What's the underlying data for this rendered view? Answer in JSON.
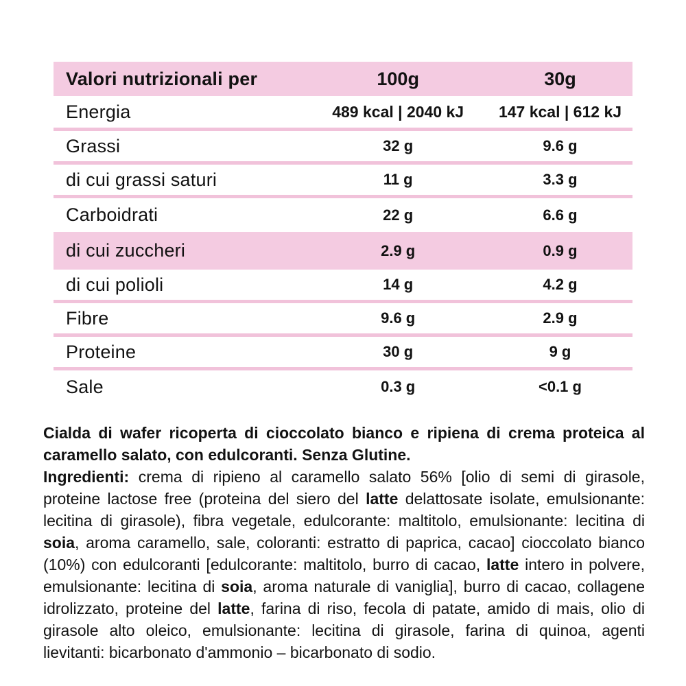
{
  "colors": {
    "pink_bg": "#f4cbe1",
    "pink_line": "#f1c2da",
    "ink": "#121212",
    "page_bg": "#ffffff"
  },
  "table": {
    "header": {
      "title": "Valori nutrizionali per",
      "col_100g": "100g",
      "col_30g": "30g"
    },
    "rows": [
      {
        "label": "Energia",
        "per_100g": "489 kcal | 2040 kJ",
        "per_30g": "147 kcal | 612 kJ"
      },
      {
        "label": "Grassi",
        "per_100g": "32 g",
        "per_30g": "9.6 g"
      },
      {
        "label": "di cui grassi saturi",
        "per_100g": "11 g",
        "per_30g": "3.3 g"
      },
      {
        "label": "Carboidrati",
        "per_100g": "22 g",
        "per_30g": "6.6 g"
      },
      {
        "label": "di cui zuccheri",
        "per_100g": "2.9 g",
        "per_30g": "0.9 g"
      },
      {
        "label": "di cui polioli",
        "per_100g": "14 g",
        "per_30g": "4.2 g"
      },
      {
        "label": "Fibre",
        "per_100g": "9.6 g",
        "per_30g": "2.9 g"
      },
      {
        "label": "Proteine",
        "per_100g": "30 g",
        "per_30g": "9 g"
      },
      {
        "label": "Sale",
        "per_100g": "0.3 g",
        "per_30g": "<0.1 g"
      }
    ]
  },
  "description": {
    "text": "Cialda di wafer ricoperta di cioccolato bianco e ripiena di crema proteica al caramello salato, con edulcoranti. Senza Glutine."
  },
  "ingredients": {
    "segments": [
      {
        "text": "Ingredienti:",
        "bold": true
      },
      {
        "text": " crema di ripieno al caramello salato 56% [olio di semi di girasole, proteine lactose free (proteina del siero del ",
        "bold": false
      },
      {
        "text": "latte",
        "bold": true
      },
      {
        "text": " delattosate isolate, emulsionante: lecitina di girasole), fibra vegetale, edulcorante: maltitolo, emulsionante: lecitina di ",
        "bold": false
      },
      {
        "text": "soia",
        "bold": true
      },
      {
        "text": ", aroma caramello, sale, coloranti: estratto di paprica, cacao] cioccolato bianco (10%) con edulcoranti [edulcorante: maltitolo, burro di cacao, ",
        "bold": false
      },
      {
        "text": "latte",
        "bold": true
      },
      {
        "text": " intero in polvere, emulsionante: lecitina di ",
        "bold": false
      },
      {
        "text": "soia",
        "bold": true
      },
      {
        "text": ", aroma naturale di vaniglia], burro di cacao, collagene idrolizzato, proteine del ",
        "bold": false
      },
      {
        "text": "latte",
        "bold": true
      },
      {
        "text": ", farina di riso, fecola di patate, amido di mais, olio di girasole alto oleico, emulsionante: lecitina di girasole, farina di quinoa, agenti lievitanti: bicarbonato d'ammonio – bicarbonato di sodio.",
        "bold": false
      }
    ]
  }
}
